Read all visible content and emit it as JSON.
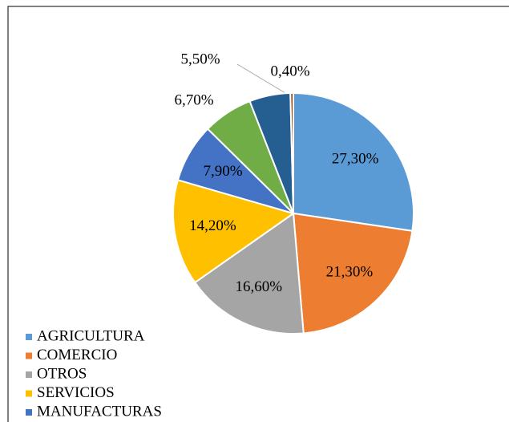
{
  "chart_data": {
    "type": "pie",
    "categories": [
      "AGRICULTURA",
      "COMERCIO",
      "OTROS",
      "SERVICIOS",
      "MANUFACTURAS",
      null,
      null,
      null
    ],
    "values": [
      27.3,
      21.3,
      16.6,
      14.2,
      7.9,
      6.7,
      5.5,
      0.4
    ],
    "value_labels": [
      "27,30%",
      "21,30%",
      "16,60%",
      "14,20%",
      "7,90%",
      "6,70%",
      "5,50%",
      "0,40%"
    ],
    "colors": [
      "#5b9bd5",
      "#ed7d31",
      "#a5a5a5",
      "#ffc000",
      "#4472c4",
      "#70ad47",
      "#255e91",
      "#9e480e"
    ]
  }
}
